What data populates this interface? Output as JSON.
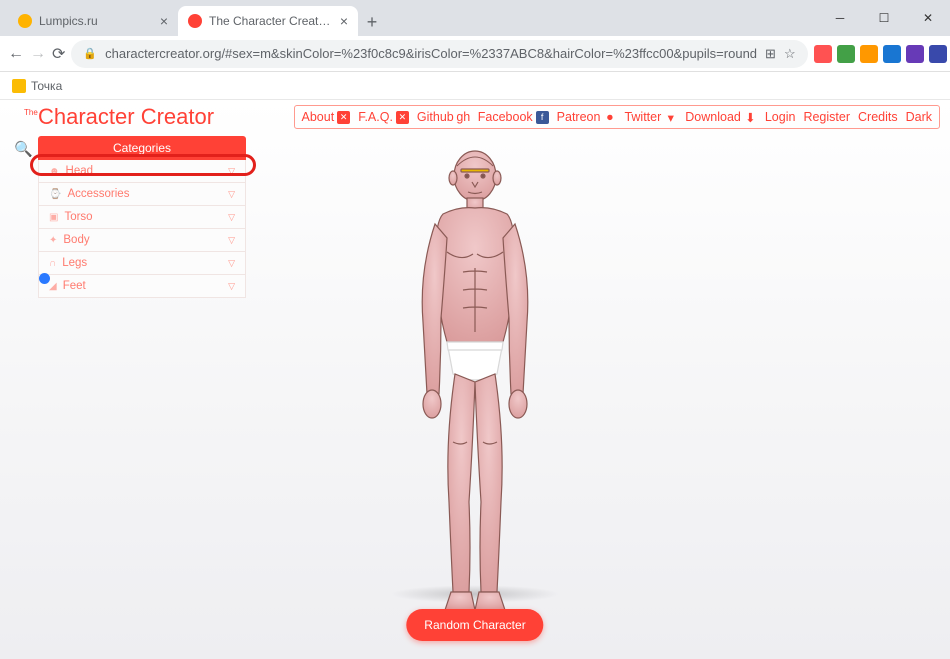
{
  "window": {
    "tabs": [
      {
        "title": "Lumpics.ru",
        "favicon_color": "#ffb300",
        "active": false
      },
      {
        "title": "The Character Creator - Build vis...",
        "favicon_color": "#ff4136",
        "active": true
      }
    ],
    "url_display": "charactercreator.org/#sex=m&skinColor=%23f0c8c9&irisColor=%2337ABC8&hairColor=%23ffcc00&pupils=round",
    "bookmark": "Точка",
    "ext_colors": [
      "#ff5252",
      "#43a047",
      "#ff9800",
      "#1976d2",
      "#673ab7",
      "#3949ab"
    ]
  },
  "site": {
    "logo_pre": "The",
    "logo": "Character Creator",
    "nav": [
      {
        "label": "About",
        "icon": "✕",
        "icon_bg": "#ff4136"
      },
      {
        "label": "F.A.Q.",
        "icon": "✕",
        "icon_bg": "#ff4136"
      },
      {
        "label": "Github",
        "icon": "gh"
      },
      {
        "label": "Facebook",
        "icon": "f",
        "icon_bg": "#3b5998"
      },
      {
        "label": "Patreon",
        "icon": "●",
        "icon_color": "#ff4136"
      },
      {
        "label": "Twitter",
        "icon": "▾"
      },
      {
        "label": "Download",
        "icon": "⬇"
      },
      {
        "label": "Login"
      },
      {
        "label": "Register"
      },
      {
        "label": "Credits"
      },
      {
        "label": "Dark"
      }
    ],
    "categories_header": "Categories",
    "categories": [
      {
        "label": "Head",
        "icon": "☻"
      },
      {
        "label": "Accessories",
        "icon": "⌚"
      },
      {
        "label": "Torso",
        "icon": "▣"
      },
      {
        "label": "Body",
        "icon": "✦"
      },
      {
        "label": "Legs",
        "icon": "∩"
      },
      {
        "label": "Feet",
        "icon": "◢"
      }
    ],
    "random_btn": "Random Character",
    "character": {
      "skin": "#f0c8c9",
      "skin_shadow": "#d99a9a",
      "outline": "#8a5a55",
      "underwear": "#ffffff",
      "underwear_shadow": "#d8d8d8",
      "brow": "#e9b800"
    }
  }
}
